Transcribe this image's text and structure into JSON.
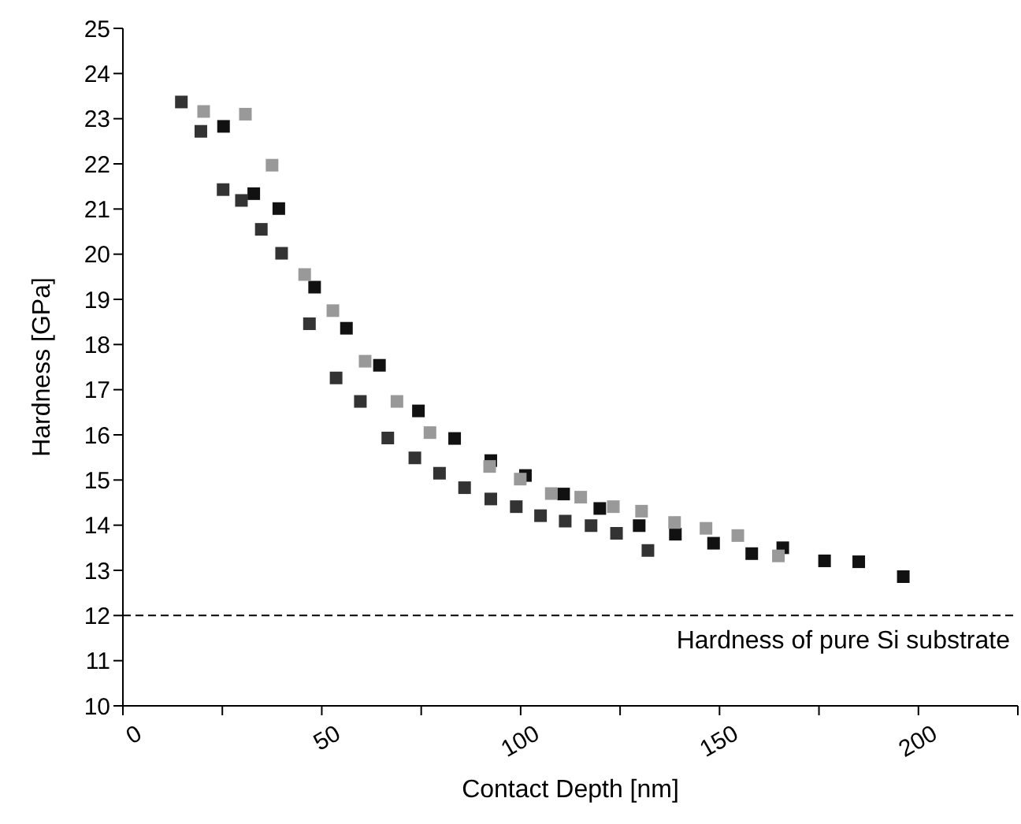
{
  "chart_data": {
    "type": "scatter",
    "xlabel": "Contact Depth [nm]",
    "ylabel": "Hardness [GPa]",
    "xlim": [
      0,
      225
    ],
    "xticks": [
      0,
      {
        "value": 25,
        "label": null
      },
      50,
      {
        "value": 75,
        "label": null
      },
      100,
      {
        "value": 125,
        "label": null
      },
      150,
      {
        "value": 175,
        "label": null
      },
      200,
      {
        "value": 225,
        "label": null
      }
    ],
    "ylim": [
      10,
      25
    ],
    "yticks": [
      10,
      11,
      12,
      13,
      14,
      15,
      16,
      17,
      18,
      19,
      20,
      21,
      22,
      23,
      24,
      25
    ],
    "marker": "square",
    "series": [
      {
        "color": "#111111",
        "x": [
          25.3,
          32.9,
          39.2,
          48.2,
          56.2,
          64.5,
          74.3,
          83.4,
          92.5,
          101.2,
          110.8,
          119.9,
          129.8,
          138.9,
          148.5,
          158.1,
          165.9,
          176.4,
          185,
          196.2
        ],
        "values": [
          22.83,
          21.34,
          21.01,
          19.27,
          18.36,
          17.54,
          16.53,
          15.92,
          15.43,
          15.1,
          14.69,
          14.37,
          13.99,
          13.8,
          13.6,
          13.37,
          13.5,
          13.21,
          13.19,
          12.86
        ]
      },
      {
        "color": "#333333",
        "x": [
          14.7,
          19.6,
          25.2,
          29.8,
          34.8,
          39.9,
          46.9,
          53.6,
          59.7,
          66.6,
          73.4,
          79.6,
          85.9,
          92.5,
          98.9,
          105,
          111.2,
          117.7,
          124.1,
          132
        ],
        "values": [
          23.37,
          22.72,
          21.43,
          21.19,
          20.55,
          20.02,
          18.46,
          17.26,
          16.74,
          15.93,
          15.49,
          15.15,
          14.83,
          14.58,
          14.41,
          14.21,
          14.09,
          13.99,
          13.82,
          13.44
        ]
      },
      {
        "color": "#999999",
        "x": [
          20.3,
          30.8,
          37.5,
          45.7,
          52.8,
          60.9,
          68.9,
          77.2,
          92.2,
          99.9,
          107.7,
          115.1,
          123.3,
          130.4,
          138.7,
          146.6,
          154.6,
          164.8
        ],
        "values": [
          23.16,
          23.1,
          21.97,
          19.55,
          18.75,
          17.63,
          16.74,
          16.05,
          15.3,
          15.02,
          14.7,
          14.62,
          14.41,
          14.31,
          14.06,
          13.93,
          13.77,
          13.32
        ]
      }
    ],
    "ref_lines": [
      {
        "axis": "y",
        "value": 12,
        "label": "Hardness of pure Si substrate",
        "color": "#000000",
        "line_style": "dashed"
      }
    ]
  }
}
